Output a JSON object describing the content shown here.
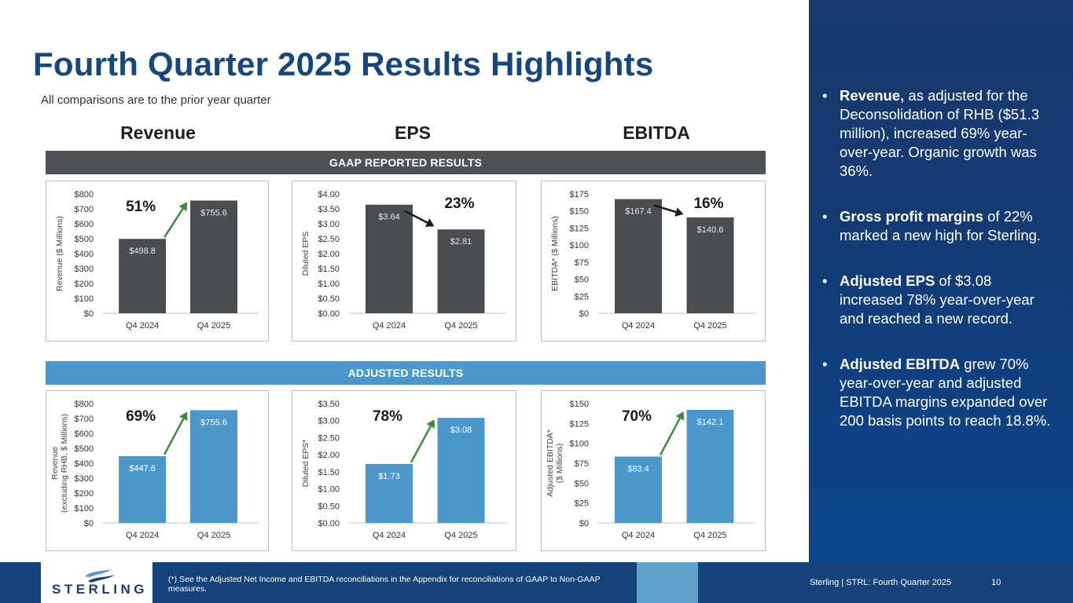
{
  "title": "Fourth Quarter 2025 Results Highlights",
  "subtitle": "All comparisons are to the prior year quarter",
  "columns": [
    "Revenue",
    "EPS",
    "EBITDA"
  ],
  "bands": {
    "gaap": "GAAP REPORTED RESULTS",
    "adjusted": "ADJUSTED RESULTS"
  },
  "colors": {
    "gaap_bar": "#4a4d52",
    "adj_bar": "#4c98cd",
    "up_arrow": "#3f8a3c",
    "down_arrow": "#1a1a1a",
    "title": "#14467f"
  },
  "chart_data": [
    {
      "type": "bar",
      "group": "GAAP",
      "ylabel": [
        "Revenue ($ Millions)"
      ],
      "categories": [
        "Q4 2024",
        "Q4 2025"
      ],
      "values": [
        498.8,
        755.6
      ],
      "value_labels": [
        "$498.8",
        "$755.6"
      ],
      "ylim": [
        0,
        800
      ],
      "ticks": [
        "$0",
        "$100",
        "$200",
        "$300",
        "$400",
        "$500",
        "$600",
        "$700",
        "$800"
      ],
      "change": "51%",
      "direction": "up"
    },
    {
      "type": "bar",
      "group": "GAAP",
      "ylabel": [
        "Diluted EPS"
      ],
      "categories": [
        "Q4 2024",
        "Q4 2025"
      ],
      "values": [
        3.64,
        2.81
      ],
      "value_labels": [
        "$3.64",
        "$2.81"
      ],
      "ylim": [
        0,
        4
      ],
      "ticks": [
        "$0.00",
        "$0.50",
        "$1.00",
        "$1.50",
        "$2.00",
        "$2.50",
        "$3.00",
        "$3.50",
        "$4.00"
      ],
      "change": "23%",
      "direction": "down"
    },
    {
      "type": "bar",
      "group": "GAAP",
      "ylabel": [
        "EBITDA* ($ Millions)"
      ],
      "categories": [
        "Q4 2024",
        "Q4 2025"
      ],
      "values": [
        167.4,
        140.6
      ],
      "value_labels": [
        "$167.4",
        "$140.6"
      ],
      "ylim": [
        0,
        175
      ],
      "ticks": [
        "$0",
        "$25",
        "$50",
        "$75",
        "$100",
        "$125",
        "$150",
        "$175"
      ],
      "change": "16%",
      "direction": "down"
    },
    {
      "type": "bar",
      "group": "Adjusted",
      "ylabel": [
        "Revenue",
        "(excluding RHB, $ Millions)"
      ],
      "categories": [
        "Q4 2024",
        "Q4 2025"
      ],
      "values": [
        447.6,
        755.6
      ],
      "value_labels": [
        "$447.6",
        "$755.6"
      ],
      "ylim": [
        0,
        800
      ],
      "ticks": [
        "$0",
        "$100",
        "$200",
        "$300",
        "$400",
        "$500",
        "$600",
        "$700",
        "$800"
      ],
      "change": "69%",
      "direction": "up"
    },
    {
      "type": "bar",
      "group": "Adjusted",
      "ylabel": [
        "Diluted EPS*"
      ],
      "categories": [
        "Q4 2024",
        "Q4 2025"
      ],
      "values": [
        1.73,
        3.08
      ],
      "value_labels": [
        "$1.73",
        "$3.08"
      ],
      "ylim": [
        0,
        3.5
      ],
      "ticks": [
        "$0.00",
        "$0.50",
        "$1.00",
        "$1.50",
        "$2.00",
        "$2.50",
        "$3.00",
        "$3.50"
      ],
      "change": "78%",
      "direction": "up"
    },
    {
      "type": "bar",
      "group": "Adjusted",
      "ylabel": [
        "Adjusted EBITDA*",
        "($ Millions)"
      ],
      "categories": [
        "Q4 2024",
        "Q4 2025"
      ],
      "values": [
        83.4,
        142.1
      ],
      "value_labels": [
        "$83.4",
        "$142.1"
      ],
      "ylim": [
        0,
        150
      ],
      "ticks": [
        "$0",
        "$25",
        "$50",
        "$75",
        "$100",
        "$125",
        "$150"
      ],
      "change": "70%",
      "direction": "up"
    }
  ],
  "bullets": [
    {
      "bold": "Revenue,",
      "text": " as adjusted for the Deconsolidation of RHB ($51.3 million), increased 69% year-over-year. Organic growth was 36%."
    },
    {
      "bold": "Gross profit margins",
      "text": " of 22% marked a new high for Sterling."
    },
    {
      "bold": "Adjusted EPS",
      "text": " of $3.08 increased 78% year-over-year and reached a new record."
    },
    {
      "bold": "Adjusted EBITDA",
      "text": " grew 70% year-over-year and adjusted EBITDA margins expanded over 200 basis points to reach 18.8%."
    }
  ],
  "bullet_glyph": "•",
  "footer": {
    "logo_text": "STERLING",
    "note": "(*) See the Adjusted Net Income and EBITDA reconciliations in the Appendix for reconciliations of GAAP to Non-GAAP measures.",
    "meta": "Sterling | STRL: Fourth Quarter 2025",
    "page": "10"
  }
}
